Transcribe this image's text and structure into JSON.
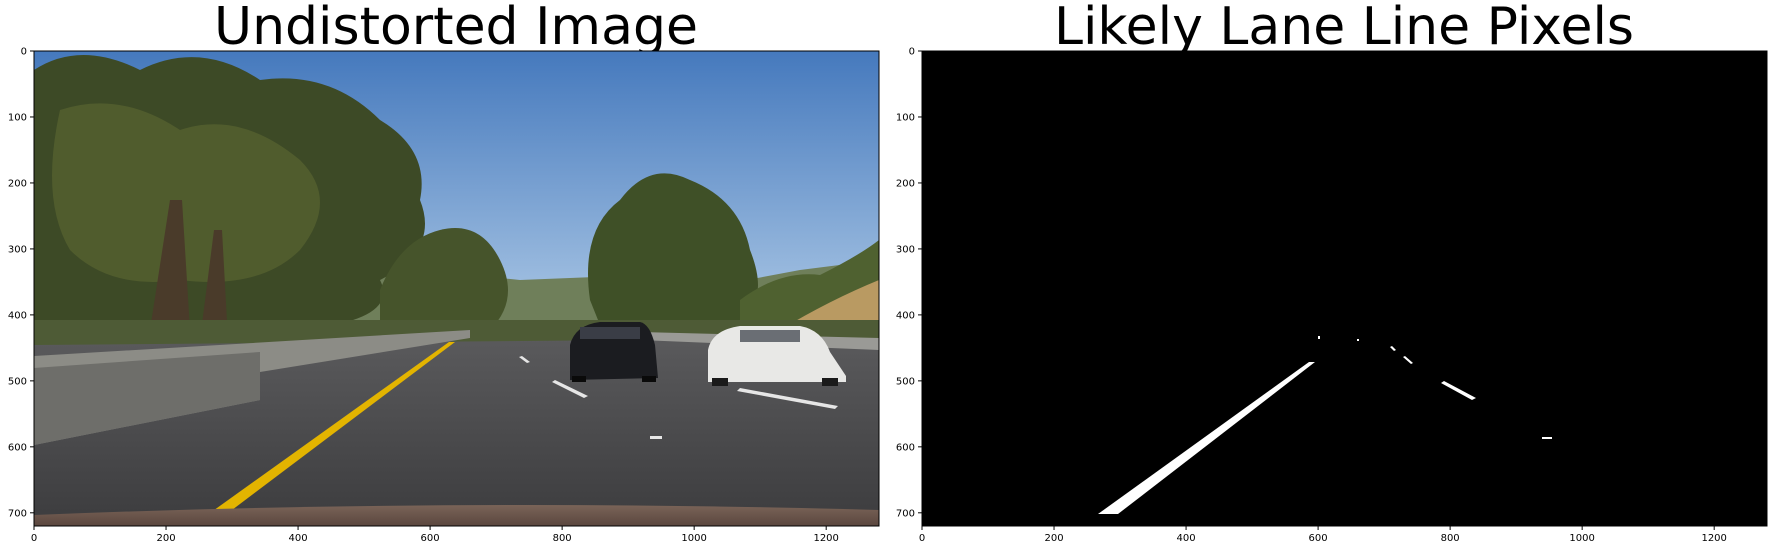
{
  "panels": [
    {
      "title": "Undistorted Image",
      "x_ticks": [
        "0",
        "200",
        "400",
        "600",
        "800",
        "1000",
        "1200"
      ],
      "y_ticks": [
        "0",
        "100",
        "200",
        "300",
        "400",
        "500",
        "600",
        "700"
      ],
      "content": "road-photo"
    },
    {
      "title": "Likely Lane Line Pixels",
      "x_ticks": [
        "0",
        "200",
        "400",
        "600",
        "800",
        "1000",
        "1200"
      ],
      "y_ticks": [
        "0",
        "100",
        "200",
        "300",
        "400",
        "500",
        "600",
        "700"
      ],
      "content": "binary-mask"
    }
  ],
  "colors": {
    "sky_top": "#4a7fc0",
    "sky_bottom": "#a9c6e6",
    "road": "#4b4b4d",
    "yellow_line": "#e3b400",
    "mask_bg": "#000000",
    "mask_fg": "#ffffff"
  }
}
